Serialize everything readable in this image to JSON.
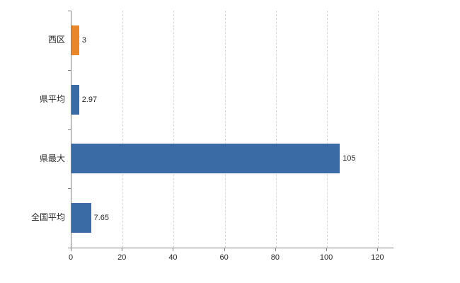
{
  "chart_data": {
    "type": "bar",
    "orientation": "horizontal",
    "title": "",
    "xlabel": "",
    "ylabel": "",
    "categories": [
      "西区",
      "県平均",
      "県最大",
      "全国平均"
    ],
    "values": [
      3,
      2.97,
      105,
      7.65
    ],
    "value_labels": [
      "3",
      "2.97",
      "105",
      "7.65"
    ],
    "bar_colors": [
      "#e8862c",
      "#3a6ba4",
      "#3a6ba4",
      "#3a6ba4"
    ],
    "x_ticks": [
      0,
      20,
      40,
      60,
      80,
      100,
      120
    ],
    "x_tick_labels": [
      "0",
      "20",
      "40",
      "60",
      "80",
      "100",
      "120"
    ],
    "xlim": [
      0,
      126
    ],
    "grid": "dashed-vertical",
    "legend": "none"
  },
  "colors": {
    "bar_blue": "#3a6ba4",
    "bar_orange": "#e8862c",
    "gridline": "#d8d8d8",
    "axis": "#7f7f7f",
    "text": "#262626",
    "background": "#ffffff"
  }
}
